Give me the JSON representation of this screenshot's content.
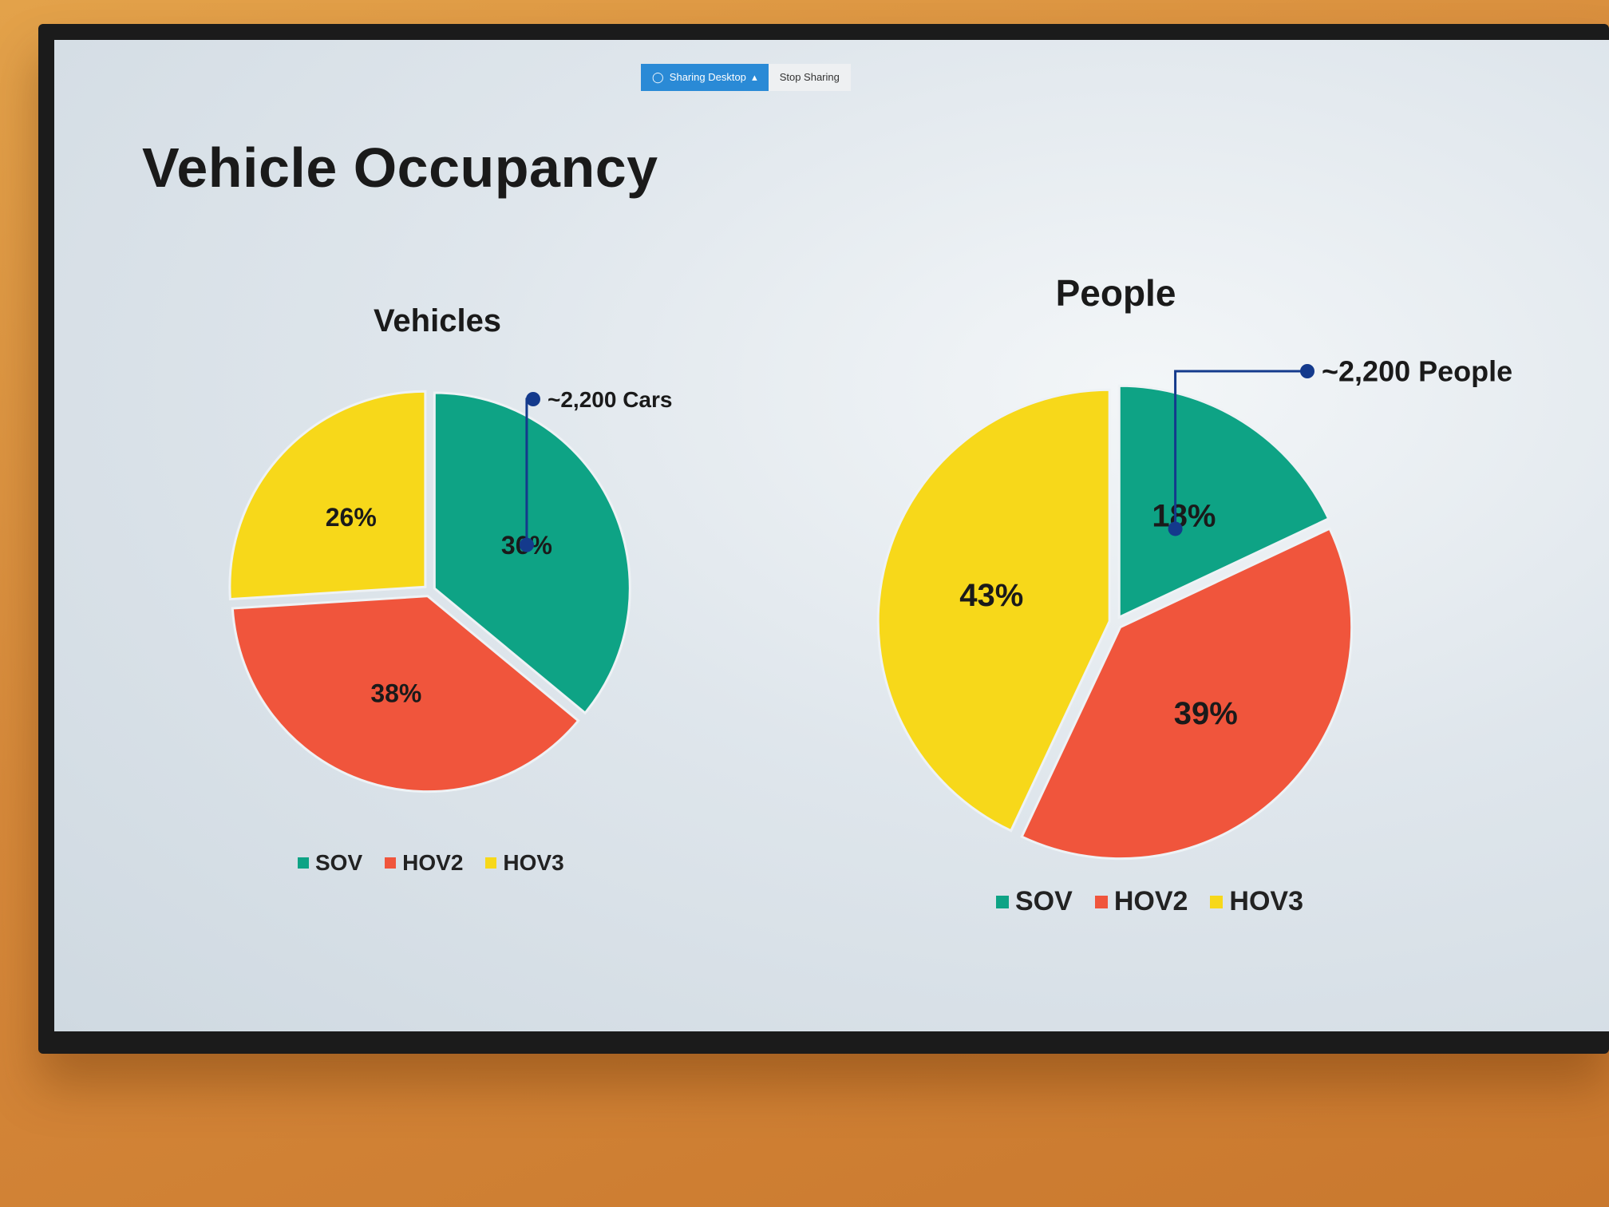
{
  "share_bar": {
    "sharing_label": "Sharing Desktop",
    "stop_label": "Stop Sharing"
  },
  "slide": {
    "title": "Vehicle Occupancy"
  },
  "colors": {
    "SOV": "#0ea385",
    "HOV2": "#f0553c",
    "HOV3": "#f7d81a",
    "callout": "#143a8c"
  },
  "chart_data": [
    {
      "type": "pie",
      "title": "Vehicles",
      "categories": [
        "SOV",
        "HOV2",
        "HOV3"
      ],
      "values": [
        36,
        38,
        26
      ],
      "data_labels": [
        "36%",
        "38%",
        "26%"
      ],
      "legend": [
        "SOV",
        "HOV2",
        "HOV3"
      ],
      "legend_position": "bottom",
      "annotation": "~2,200 Cars"
    },
    {
      "type": "pie",
      "title": "People",
      "categories": [
        "SOV",
        "HOV2",
        "HOV3"
      ],
      "values": [
        18,
        39,
        43
      ],
      "data_labels": [
        "18%",
        "39%",
        "43%"
      ],
      "legend": [
        "SOV",
        "HOV2",
        "HOV3"
      ],
      "legend_position": "bottom",
      "annotation": "~2,200 People"
    }
  ]
}
